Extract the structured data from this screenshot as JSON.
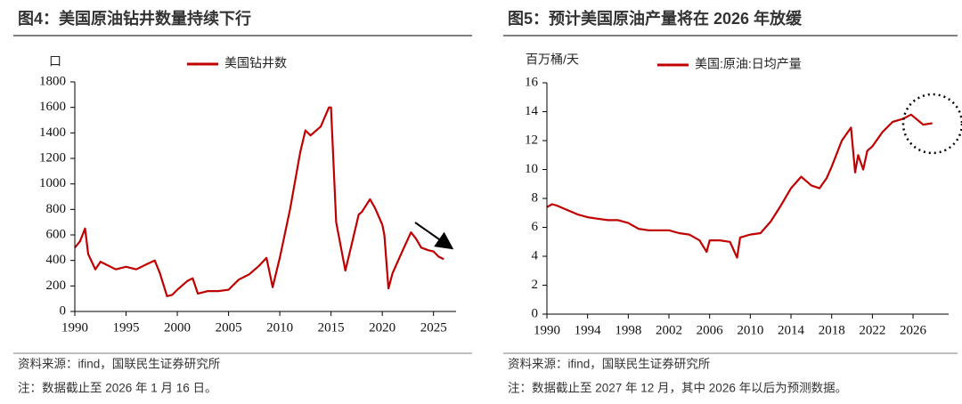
{
  "chart_data": [
    {
      "type": "line",
      "title": "图4：美国原油钻井数量持续下行",
      "y_label": "口",
      "x": [
        1990,
        1990.5,
        1991,
        1991.3,
        1992,
        1992.5,
        1993,
        1994,
        1995,
        1996,
        1997,
        1997.8,
        1998.3,
        1999,
        1999.5,
        2000,
        2001,
        2001.5,
        2002,
        2003,
        2004,
        2005,
        2006,
        2007,
        2008,
        2008.7,
        2009.3,
        2010,
        2011,
        2012,
        2012.5,
        2013,
        2014,
        2014.8,
        2015,
        2015.5,
        2016.4,
        2017,
        2017.7,
        2018,
        2018.8,
        2019.3,
        2020,
        2020.2,
        2020.6,
        2021,
        2022,
        2022.8,
        2023.3,
        2023.8,
        2024.5,
        2025,
        2025.5,
        2026
      ],
      "series": [
        {
          "name": "美国钻井数",
          "color": "#c00000",
          "values": [
            500,
            550,
            650,
            450,
            330,
            390,
            370,
            330,
            350,
            330,
            370,
            400,
            300,
            120,
            130,
            170,
            240,
            260,
            140,
            160,
            160,
            170,
            250,
            290,
            360,
            420,
            190,
            420,
            800,
            1250,
            1420,
            1380,
            1450,
            1600,
            1600,
            700,
            320,
            520,
            760,
            780,
            880,
            810,
            680,
            600,
            180,
            300,
            480,
            620,
            570,
            500,
            480,
            470,
            430,
            410
          ]
        }
      ],
      "xlim": [
        1990,
        2027.2
      ],
      "xticks": [
        1990,
        1995,
        2000,
        2005,
        2010,
        2015,
        2020,
        2025
      ],
      "ylim": [
        0,
        1800
      ],
      "yticks": [
        0,
        200,
        400,
        600,
        800,
        1000,
        1200,
        1400,
        1600,
        1800
      ],
      "source": "资料来源：ifind，国联民生证券研究所",
      "note": "注：数据截止至 2026 年 1 月 16 日。"
    },
    {
      "type": "line",
      "title": "图5：预计美国原油产量将在 2026 年放缓",
      "y_label": "百万桶/天",
      "x": [
        1990,
        1990.5,
        1991,
        1992,
        1993,
        1994,
        1995,
        1996,
        1997,
        1998,
        1999,
        2000,
        2001,
        2002,
        2003,
        2004,
        2005,
        2005.7,
        2006,
        2007,
        2008,
        2008.7,
        2009,
        2010,
        2011,
        2012,
        2013,
        2014,
        2015,
        2016,
        2016.8,
        2017.5,
        2018,
        2019,
        2019.9,
        2020.3,
        2020.6,
        2021.1,
        2021.5,
        2022,
        2023,
        2024,
        2025,
        2025.8,
        2026.5,
        2027,
        2027.9
      ],
      "series": [
        {
          "name": "美国:原油:日均产量",
          "color": "#c00000",
          "values": [
            7.4,
            7.6,
            7.5,
            7.2,
            6.9,
            6.7,
            6.6,
            6.5,
            6.5,
            6.3,
            5.9,
            5.8,
            5.8,
            5.8,
            5.6,
            5.5,
            5.1,
            4.3,
            5.1,
            5.1,
            5.0,
            3.9,
            5.3,
            5.5,
            5.6,
            6.4,
            7.5,
            8.7,
            9.5,
            8.9,
            8.7,
            9.4,
            10.2,
            12.0,
            12.9,
            9.8,
            11.0,
            10.0,
            11.3,
            11.6,
            12.6,
            13.3,
            13.5,
            13.8,
            13.4,
            13.1,
            13.2
          ]
        }
      ],
      "xlim": [
        1990,
        2029.5
      ],
      "xticks": [
        1990,
        1994,
        1998,
        2002,
        2006,
        2010,
        2014,
        2018,
        2022,
        2026
      ],
      "ylim": [
        0,
        16
      ],
      "yticks": [
        0,
        2,
        4,
        6,
        8,
        10,
        12,
        14,
        16
      ],
      "source": "资料来源：ifind，国联民生证券研究所",
      "note": "注：数据截止至 2027 年 12 月，其中 2026 年以后为预测数据。"
    }
  ]
}
